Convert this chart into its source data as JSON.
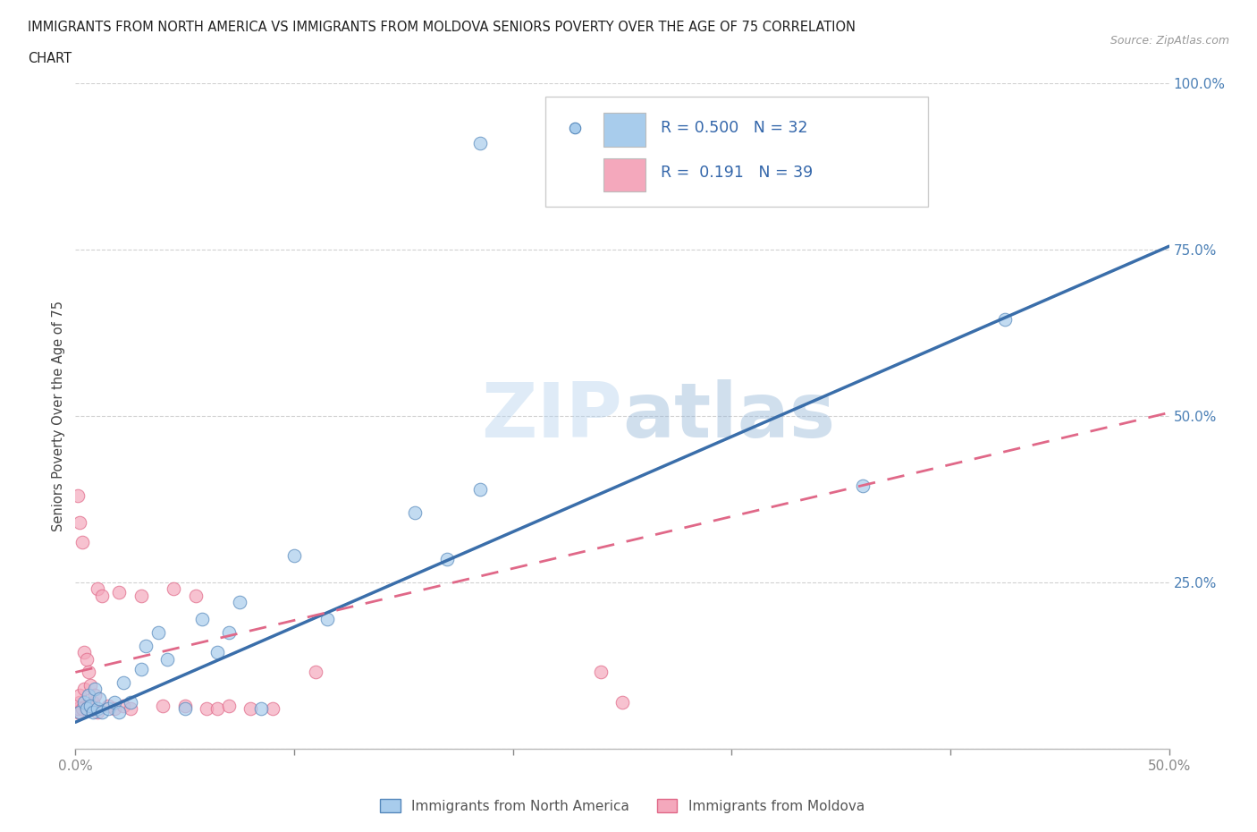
{
  "title_line1": "IMMIGRANTS FROM NORTH AMERICA VS IMMIGRANTS FROM MOLDOVA SENIORS POVERTY OVER THE AGE OF 75 CORRELATION",
  "title_line2": "CHART",
  "source": "Source: ZipAtlas.com",
  "ylabel": "Seniors Poverty Over the Age of 75",
  "xlim": [
    0.0,
    0.5
  ],
  "ylim": [
    0.0,
    1.0
  ],
  "R_blue": 0.5,
  "N_blue": 32,
  "R_pink": 0.191,
  "N_pink": 39,
  "color_blue": "#A8CCEC",
  "color_pink": "#F4A8BC",
  "line_blue": "#3A6EAA",
  "line_pink": "#E06888",
  "legend_blue_label": "Immigrants from North America",
  "legend_pink_label": "Immigrants from Moldova",
  "na_line_x0": 0.0,
  "na_line_y0": 0.04,
  "na_line_x1": 0.5,
  "na_line_y1": 0.755,
  "md_line_x0": 0.0,
  "md_line_y0": 0.115,
  "md_line_x1": 0.5,
  "md_line_y1": 0.505,
  "north_america_x": [
    0.002,
    0.004,
    0.005,
    0.006,
    0.007,
    0.008,
    0.009,
    0.01,
    0.011,
    0.012,
    0.015,
    0.018,
    0.02,
    0.022,
    0.025,
    0.03,
    0.032,
    0.038,
    0.042,
    0.05,
    0.058,
    0.065,
    0.07,
    0.075,
    0.085,
    0.1,
    0.115,
    0.155,
    0.17,
    0.185,
    0.36,
    0.425
  ],
  "north_america_y": [
    0.055,
    0.07,
    0.06,
    0.08,
    0.065,
    0.055,
    0.09,
    0.06,
    0.075,
    0.055,
    0.06,
    0.07,
    0.055,
    0.1,
    0.07,
    0.12,
    0.155,
    0.175,
    0.135,
    0.06,
    0.195,
    0.145,
    0.175,
    0.22,
    0.06,
    0.29,
    0.195,
    0.355,
    0.285,
    0.39,
    0.395,
    0.645
  ],
  "north_america_outlier_x": [
    0.185
  ],
  "north_america_outlier_y": [
    0.91
  ],
  "moldova_x": [
    0.001,
    0.001,
    0.001,
    0.002,
    0.002,
    0.002,
    0.003,
    0.003,
    0.004,
    0.004,
    0.005,
    0.005,
    0.006,
    0.006,
    0.007,
    0.007,
    0.008,
    0.009,
    0.01,
    0.01,
    0.012,
    0.015,
    0.018,
    0.02,
    0.022,
    0.025,
    0.03,
    0.04,
    0.045,
    0.05,
    0.055,
    0.06,
    0.065,
    0.07,
    0.08,
    0.09,
    0.11,
    0.24,
    0.25
  ],
  "moldova_y": [
    0.055,
    0.38,
    0.06,
    0.34,
    0.07,
    0.08,
    0.31,
    0.06,
    0.09,
    0.145,
    0.06,
    0.135,
    0.065,
    0.115,
    0.065,
    0.095,
    0.07,
    0.08,
    0.055,
    0.24,
    0.23,
    0.065,
    0.06,
    0.235,
    0.065,
    0.06,
    0.23,
    0.065,
    0.24,
    0.065,
    0.23,
    0.06,
    0.06,
    0.065,
    0.06,
    0.06,
    0.115,
    0.115,
    0.07
  ]
}
